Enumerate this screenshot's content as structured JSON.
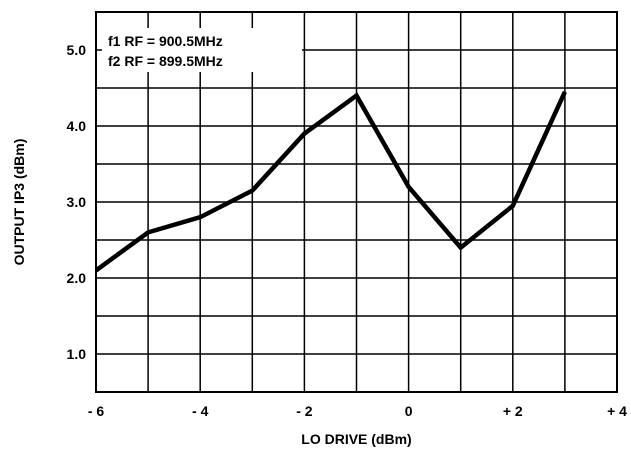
{
  "chart_data": {
    "type": "line",
    "xlabel": "LO DRIVE (dBm)",
    "ylabel": "OUTPUT IP3 (dBm)",
    "xlim": [
      -6,
      4
    ],
    "ylim": [
      0.5,
      5.5
    ],
    "grid": true,
    "x_tick_values": [
      -6,
      -4,
      -2,
      0,
      2,
      4
    ],
    "x_tick_labels": [
      "- 6",
      "- 4",
      "- 2",
      "0",
      "+ 2",
      "+ 4"
    ],
    "y_tick_values": [
      1.0,
      2.0,
      3.0,
      4.0,
      5.0
    ],
    "y_tick_labels": [
      "1.0",
      "2.0",
      "3.0",
      "4.0",
      "5.0"
    ],
    "x_grid_step": 1,
    "y_grid_step": 0.5,
    "annotation": [
      "f1 RF = 900.5MHz",
      "f2 RF = 899.5MHz"
    ],
    "series": [
      {
        "x": [
          -6,
          -5,
          -4,
          -3,
          -2,
          -1,
          0,
          1,
          2,
          3
        ],
        "y": [
          2.1,
          2.6,
          2.8,
          3.15,
          3.9,
          4.4,
          3.2,
          2.4,
          2.95,
          4.45
        ]
      }
    ]
  }
}
